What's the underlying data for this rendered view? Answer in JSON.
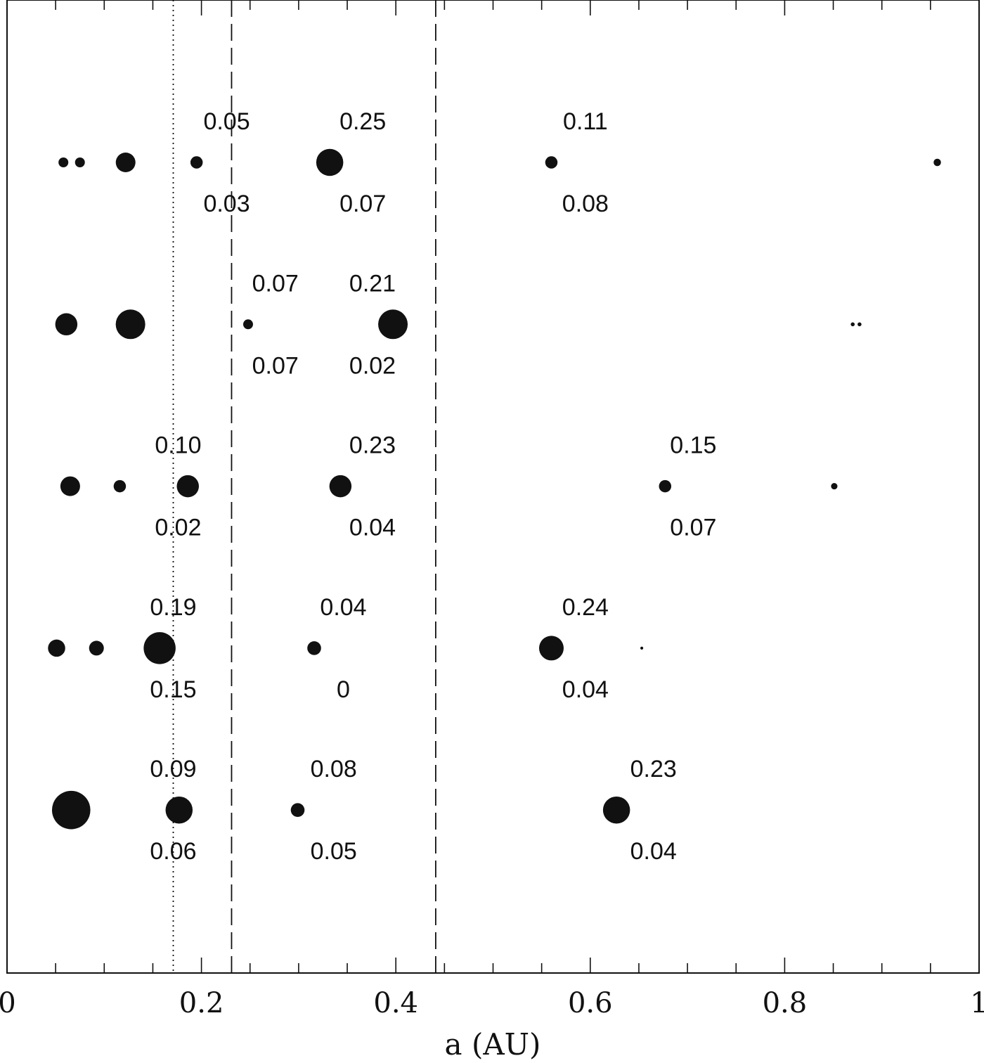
{
  "chart_data": {
    "type": "scatter",
    "xlabel": "a (AU)",
    "ylabel": "",
    "xlim": [
      0,
      1
    ],
    "x_ticks": [
      "0",
      "0.2",
      "0.4",
      "0.6",
      "0.8",
      "1"
    ],
    "x_tick_values": [
      0,
      0.2,
      0.4,
      0.6,
      0.8,
      1
    ],
    "grid": false,
    "reference_lines": [
      {
        "x": 0.171,
        "style": "dotted"
      },
      {
        "x": 0.231,
        "style": "dashed"
      },
      {
        "x": 0.441,
        "style": "dashed"
      }
    ],
    "rows": [
      {
        "planets": [
          {
            "a": 0.058,
            "size": 2
          },
          {
            "a": 0.075,
            "size": 2
          },
          {
            "a": 0.122,
            "size": 4
          },
          {
            "a": 0.195,
            "size": 2.5
          },
          {
            "a": 0.332,
            "size": 5.5
          },
          {
            "a": 0.56,
            "size": 2.5
          },
          {
            "a": 0.957,
            "size": 1.5
          }
        ],
        "labels": [
          {
            "a": 0.226,
            "above": "0.05",
            "below": "0.03"
          },
          {
            "a": 0.366,
            "above": "0.25",
            "below": "0.07"
          },
          {
            "a": 0.595,
            "above": "0.11",
            "below": "0.08"
          }
        ]
      },
      {
        "planets": [
          {
            "a": 0.061,
            "size": 4.5
          },
          {
            "a": 0.127,
            "size": 6
          },
          {
            "a": 0.248,
            "size": 2
          },
          {
            "a": 0.397,
            "size": 6
          },
          {
            "a": 0.87,
            "size": 0.8
          },
          {
            "a": 0.877,
            "size": 0.8
          }
        ],
        "labels": [
          {
            "a": 0.276,
            "above": "0.07",
            "below": "0.07"
          },
          {
            "a": 0.376,
            "above": "0.21",
            "below": "0.02"
          }
        ]
      },
      {
        "planets": [
          {
            "a": 0.065,
            "size": 4
          },
          {
            "a": 0.116,
            "size": 2.5
          },
          {
            "a": 0.186,
            "size": 4.5
          },
          {
            "a": 0.343,
            "size": 4.5
          },
          {
            "a": 0.677,
            "size": 2.5
          },
          {
            "a": 0.851,
            "size": 1.3
          }
        ],
        "labels": [
          {
            "a": 0.176,
            "above": "0.10",
            "below": "0.02"
          },
          {
            "a": 0.376,
            "above": "0.23",
            "below": "0.04"
          },
          {
            "a": 0.706,
            "above": "0.15",
            "below": "0.07"
          }
        ]
      },
      {
        "planets": [
          {
            "a": 0.051,
            "size": 3.5
          },
          {
            "a": 0.092,
            "size": 3
          },
          {
            "a": 0.157,
            "size": 6.5
          },
          {
            "a": 0.316,
            "size": 2.8
          },
          {
            "a": 0.56,
            "size": 5
          },
          {
            "a": 0.653,
            "size": 0.6
          }
        ],
        "labels": [
          {
            "a": 0.171,
            "above": "0.19",
            "below": "0.15"
          },
          {
            "a": 0.346,
            "above": "0.04",
            "below": "0"
          },
          {
            "a": 0.595,
            "above": "0.24",
            "below": "0.04"
          }
        ]
      },
      {
        "planets": [
          {
            "a": 0.066,
            "size": 7.8
          },
          {
            "a": 0.177,
            "size": 5.5
          },
          {
            "a": 0.299,
            "size": 2.8
          },
          {
            "a": 0.627,
            "size": 5.5
          }
        ],
        "labels": [
          {
            "a": 0.171,
            "above": "0.09",
            "below": "0.06"
          },
          {
            "a": 0.336,
            "above": "0.08",
            "below": "0.05"
          },
          {
            "a": 0.665,
            "above": "0.23",
            "below": "0.04"
          }
        ]
      }
    ]
  }
}
